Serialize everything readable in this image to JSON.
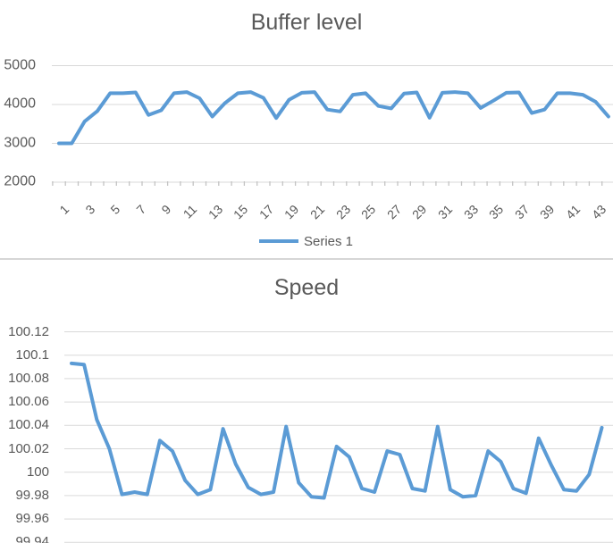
{
  "colors": {
    "series": "#5b9bd5",
    "gridline": "#d9d9d9",
    "tick": "#c3c3c3",
    "text": "#595959",
    "title": "#595959",
    "divider": "#d6d6d6",
    "background": "#ffffff"
  },
  "chart_data": [
    {
      "type": "line",
      "title": "Buffer level",
      "grid": true,
      "ylim": [
        2000,
        5000
      ],
      "y_tick_labels": [
        "5000",
        "4000",
        "3000",
        "2000"
      ],
      "x_tick_labels": [
        "1",
        "3",
        "5",
        "7",
        "9",
        "11",
        "13",
        "15",
        "17",
        "19",
        "21",
        "23",
        "25",
        "27",
        "29",
        "31",
        "33",
        "35",
        "37",
        "39",
        "41",
        "43"
      ],
      "legend": {
        "position": "bottom",
        "labels": [
          "Series 1"
        ]
      },
      "series": [
        {
          "name": "Series 1",
          "values": [
            3000,
            3000,
            3560,
            3830,
            4290,
            4290,
            4310,
            3730,
            3850,
            4290,
            4320,
            4160,
            3690,
            4040,
            4290,
            4320,
            4170,
            3650,
            4120,
            4300,
            4320,
            3870,
            3820,
            4250,
            4290,
            3960,
            3900,
            4280,
            4310,
            3660,
            4300,
            4320,
            4290,
            3910,
            4100,
            4300,
            4310,
            3780,
            3870,
            4290,
            4290,
            4250,
            4070,
            3690
          ]
        }
      ]
    },
    {
      "type": "line",
      "title": "Speed",
      "grid": true,
      "ylim": [
        99.94,
        100.12
      ],
      "y_tick_labels": [
        "100.12",
        "100.1",
        "100.08",
        "100.06",
        "100.04",
        "100.02",
        "100",
        "99.98",
        "99.96",
        "99.94"
      ],
      "x_tick_labels": [],
      "legend": {
        "position": "none",
        "labels": []
      },
      "series": [
        {
          "values": [
            100.093,
            100.092,
            100.045,
            100.02,
            99.981,
            99.983,
            99.981,
            100.027,
            100.018,
            99.993,
            99.981,
            99.985,
            100.037,
            100.007,
            99.987,
            99.981,
            99.983,
            100.039,
            99.991,
            99.979,
            99.978,
            100.022,
            100.013,
            99.986,
            99.983,
            100.018,
            100.015,
            99.986,
            99.984,
            100.039,
            99.985,
            99.979,
            99.98,
            100.018,
            100.009,
            99.986,
            99.982,
            100.029,
            100.006,
            99.985,
            99.984,
            99.998,
            100.038
          ]
        }
      ]
    }
  ]
}
